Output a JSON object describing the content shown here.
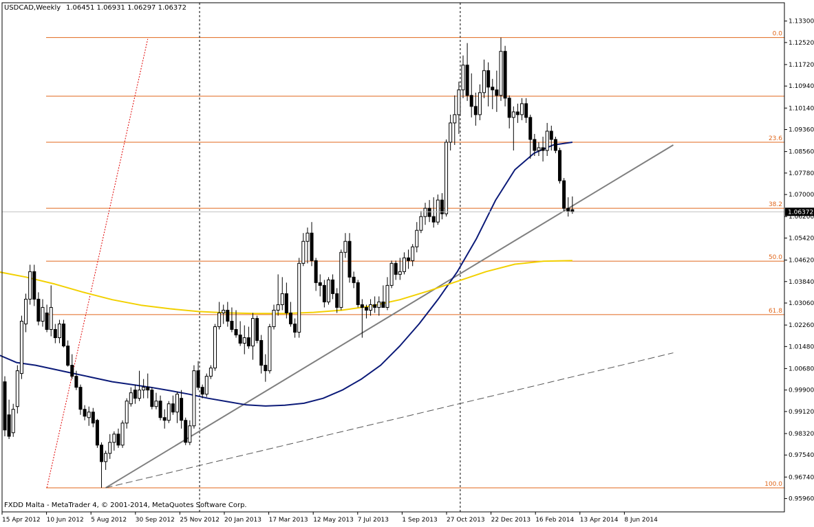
{
  "header": {
    "symbol": "USDCAD,Weekly",
    "ohlc": "1.06451 1.06931 1.06297 1.06372"
  },
  "footer": {
    "copyright": "FXDD Malta - MetaTrader 4, © 2001-2014, MetaQuotes Software Corp."
  },
  "colors": {
    "background": "#ffffff",
    "bull_candle": "#ffffff",
    "bear_candle": "#000000",
    "candle_outline": "#000000",
    "fib_lines": "#e0661a",
    "ma_fast": "#0b1a78",
    "ma_slow": "#f2d000",
    "trendline": "#7f7f7f",
    "price_line": "#c0c0c0"
  },
  "chart_data": {
    "type": "candlestick",
    "title": "USDCAD,Weekly",
    "current_price": "1.06372",
    "price_axis": {
      "ylim": [
        0.9555,
        1.1364
      ],
      "ticks": [
        "1.13300",
        "1.12520",
        "1.11720",
        "1.10940",
        "1.10140",
        "1.09360",
        "1.08560",
        "1.07780",
        "1.07000",
        "1.06200",
        "1.05420",
        "1.04620",
        "1.03840",
        "1.03060",
        "1.02260",
        "1.01480",
        "1.00680",
        "0.99900",
        "0.99120",
        "0.98320",
        "0.97540",
        "0.96740",
        "0.95960"
      ]
    },
    "time_axis": {
      "ticks": [
        "15 Apr 2012",
        "10 Jun 2012",
        "5 Aug 2012",
        "30 Sep 2012",
        "25 Nov 2012",
        "20 Jan 2013",
        "17 Mar 2013",
        "12 May 2013",
        "7 Jul 2013",
        "1 Sep 2013",
        "27 Oct 2013",
        "22 Dec 2013",
        "16 Feb 2014",
        "13 Apr 2014",
        "8 Jun 2014"
      ],
      "first_bar": "15 Apr 2012",
      "bar_interval": "weekly"
    },
    "candles": [
      {
        "o": 1.002,
        "h": 1.004,
        "l": 0.9822,
        "c": 0.9845
      },
      {
        "o": 0.99,
        "h": 0.9955,
        "l": 0.9812,
        "c": 0.9822
      },
      {
        "o": 0.9835,
        "h": 0.994,
        "l": 0.982,
        "c": 0.992
      },
      {
        "o": 0.993,
        "h": 1.008,
        "l": 0.9905,
        "c": 1.006
      },
      {
        "o": 1.005,
        "h": 1.026,
        "l": 1.003,
        "c": 1.024
      },
      {
        "o": 1.023,
        "h": 1.034,
        "l": 1.02,
        "c": 1.032
      },
      {
        "o": 1.032,
        "h": 1.0445,
        "l": 1.03,
        "c": 1.042
      },
      {
        "o": 1.042,
        "h": 1.0445,
        "l": 1.0295,
        "c": 1.032
      },
      {
        "o": 1.032,
        "h": 1.0345,
        "l": 1.0225,
        "c": 1.024
      },
      {
        "o": 1.024,
        "h": 1.032,
        "l": 1.022,
        "c": 1.029
      },
      {
        "o": 1.027,
        "h": 1.03,
        "l": 1.02,
        "c": 1.021
      },
      {
        "o": 1.021,
        "h": 1.037,
        "l": 1.0185,
        "c": 1.029
      },
      {
        "o": 1.021,
        "h": 1.023,
        "l": 1.016,
        "c": 1.018
      },
      {
        "o": 1.018,
        "h": 1.0245,
        "l": 1.016,
        "c": 1.023
      },
      {
        "o": 1.023,
        "h": 1.0245,
        "l": 1.0145,
        "c": 1.015
      },
      {
        "o": 1.015,
        "h": 1.017,
        "l": 1.0075,
        "c": 1.008
      },
      {
        "o": 1.008,
        "h": 1.012,
        "l": 1.003,
        "c": 1.004
      },
      {
        "o": 1.004,
        "h": 1.006,
        "l": 0.999,
        "c": 1.0
      },
      {
        "o": 1.0,
        "h": 1.001,
        "l": 0.99,
        "c": 0.992
      },
      {
        "o": 0.992,
        "h": 0.9935,
        "l": 0.988,
        "c": 0.9895
      },
      {
        "o": 0.989,
        "h": 0.993,
        "l": 0.986,
        "c": 0.991
      },
      {
        "o": 0.991,
        "h": 0.9925,
        "l": 0.9855,
        "c": 0.987
      },
      {
        "o": 0.988,
        "h": 0.9885,
        "l": 0.978,
        "c": 0.979
      },
      {
        "o": 0.979,
        "h": 0.98,
        "l": 0.9635,
        "c": 0.973
      },
      {
        "o": 0.973,
        "h": 0.977,
        "l": 0.97,
        "c": 0.976
      },
      {
        "o": 0.976,
        "h": 0.983,
        "l": 0.974,
        "c": 0.98
      },
      {
        "o": 0.98,
        "h": 0.984,
        "l": 0.977,
        "c": 0.983
      },
      {
        "o": 0.983,
        "h": 0.985,
        "l": 0.978,
        "c": 0.979
      },
      {
        "o": 0.979,
        "h": 0.988,
        "l": 0.978,
        "c": 0.987
      },
      {
        "o": 0.987,
        "h": 0.996,
        "l": 0.985,
        "c": 0.995
      },
      {
        "o": 0.994,
        "h": 1.0,
        "l": 0.993,
        "c": 0.998
      },
      {
        "o": 0.999,
        "h": 1.001,
        "l": 0.994,
        "c": 0.996
      },
      {
        "o": 0.996,
        "h": 1.006,
        "l": 0.995,
        "c": 0.999
      },
      {
        "o": 0.999,
        "h": 1.003,
        "l": 0.996,
        "c": 1.0
      },
      {
        "o": 1.0,
        "h": 1.005,
        "l": 0.996,
        "c": 0.999
      },
      {
        "o": 0.999,
        "h": 1.0,
        "l": 0.992,
        "c": 0.993
      },
      {
        "o": 0.993,
        "h": 0.998,
        "l": 0.992,
        "c": 0.995
      },
      {
        "o": 0.995,
        "h": 0.997,
        "l": 0.988,
        "c": 0.989
      },
      {
        "o": 0.989,
        "h": 0.992,
        "l": 0.985,
        "c": 0.988
      },
      {
        "o": 0.988,
        "h": 0.995,
        "l": 0.987,
        "c": 0.994
      },
      {
        "o": 0.994,
        "h": 0.997,
        "l": 0.99,
        "c": 0.991
      },
      {
        "o": 0.991,
        "h": 0.9985,
        "l": 0.987,
        "c": 0.9975
      },
      {
        "o": 0.996,
        "h": 0.999,
        "l": 0.985,
        "c": 0.988
      },
      {
        "o": 0.988,
        "h": 0.989,
        "l": 0.979,
        "c": 0.98
      },
      {
        "o": 0.98,
        "h": 0.988,
        "l": 0.979,
        "c": 0.986
      },
      {
        "o": 0.986,
        "h": 1.008,
        "l": 0.985,
        "c": 1.006
      },
      {
        "o": 1.006,
        "h": 1.0095,
        "l": 0.999,
        "c": 1.0
      },
      {
        "o": 1.0,
        "h": 1.001,
        "l": 0.996,
        "c": 0.9975
      },
      {
        "o": 0.9975,
        "h": 1.005,
        "l": 0.9965,
        "c": 1.004
      },
      {
        "o": 1.004,
        "h": 1.008,
        "l": 1.003,
        "c": 1.007
      },
      {
        "o": 1.007,
        "h": 1.023,
        "l": 1.006,
        "c": 1.022
      },
      {
        "o": 1.022,
        "h": 1.031,
        "l": 1.021,
        "c": 1.027
      },
      {
        "o": 1.027,
        "h": 1.03,
        "l": 1.023,
        "c": 1.028
      },
      {
        "o": 1.028,
        "h": 1.031,
        "l": 1.022,
        "c": 1.024
      },
      {
        "o": 1.024,
        "h": 1.029,
        "l": 1.02,
        "c": 1.021
      },
      {
        "o": 1.021,
        "h": 1.028,
        "l": 1.018,
        "c": 1.019
      },
      {
        "o": 1.019,
        "h": 1.024,
        "l": 1.015,
        "c": 1.016
      },
      {
        "o": 1.016,
        "h": 1.0225,
        "l": 1.012,
        "c": 1.018
      },
      {
        "o": 1.018,
        "h": 1.022,
        "l": 1.014,
        "c": 1.015
      },
      {
        "o": 1.015,
        "h": 1.027,
        "l": 1.01,
        "c": 1.025
      },
      {
        "o": 1.025,
        "h": 1.026,
        "l": 1.016,
        "c": 1.017
      },
      {
        "o": 1.017,
        "h": 1.019,
        "l": 1.005,
        "c": 1.008
      },
      {
        "o": 1.008,
        "h": 1.012,
        "l": 1.002,
        "c": 1.006
      },
      {
        "o": 1.006,
        "h": 1.023,
        "l": 1.005,
        "c": 1.022
      },
      {
        "o": 1.022,
        "h": 1.03,
        "l": 1.021,
        "c": 1.028
      },
      {
        "o": 1.028,
        "h": 1.041,
        "l": 1.026,
        "c": 1.03
      },
      {
        "o": 1.03,
        "h": 1.04,
        "l": 1.028,
        "c": 1.034
      },
      {
        "o": 1.034,
        "h": 1.038,
        "l": 1.025,
        "c": 1.027
      },
      {
        "o": 1.027,
        "h": 1.031,
        "l": 1.022,
        "c": 1.023
      },
      {
        "o": 1.023,
        "h": 1.025,
        "l": 1.018,
        "c": 1.02
      },
      {
        "o": 1.02,
        "h": 1.047,
        "l": 1.018,
        "c": 1.045
      },
      {
        "o": 1.045,
        "h": 1.056,
        "l": 1.044,
        "c": 1.053
      },
      {
        "o": 1.053,
        "h": 1.058,
        "l": 1.045,
        "c": 1.056
      },
      {
        "o": 1.056,
        "h": 1.06,
        "l": 1.044,
        "c": 1.046
      },
      {
        "o": 1.046,
        "h": 1.047,
        "l": 1.035,
        "c": 1.038
      },
      {
        "o": 1.038,
        "h": 1.041,
        "l": 1.033,
        "c": 1.037
      },
      {
        "o": 1.037,
        "h": 1.039,
        "l": 1.029,
        "c": 1.031
      },
      {
        "o": 1.031,
        "h": 1.04,
        "l": 1.03,
        "c": 1.039
      },
      {
        "o": 1.039,
        "h": 1.041,
        "l": 1.032,
        "c": 1.034
      },
      {
        "o": 1.034,
        "h": 1.036,
        "l": 1.027,
        "c": 1.029
      },
      {
        "o": 1.029,
        "h": 1.05,
        "l": 1.028,
        "c": 1.049
      },
      {
        "o": 1.049,
        "h": 1.056,
        "l": 1.047,
        "c": 1.053
      },
      {
        "o": 1.053,
        "h": 1.056,
        "l": 1.038,
        "c": 1.04
      },
      {
        "o": 1.04,
        "h": 1.042,
        "l": 1.036,
        "c": 1.038
      },
      {
        "o": 1.038,
        "h": 1.039,
        "l": 1.029,
        "c": 1.03
      },
      {
        "o": 1.03,
        "h": 1.032,
        "l": 1.018,
        "c": 1.029
      },
      {
        "o": 1.029,
        "h": 1.03,
        "l": 1.025,
        "c": 1.028
      },
      {
        "o": 1.028,
        "h": 1.032,
        "l": 1.026,
        "c": 1.03
      },
      {
        "o": 1.03,
        "h": 1.033,
        "l": 1.027,
        "c": 1.029
      },
      {
        "o": 1.029,
        "h": 1.033,
        "l": 1.026,
        "c": 1.031
      },
      {
        "o": 1.031,
        "h": 1.037,
        "l": 1.029,
        "c": 1.029
      },
      {
        "o": 1.029,
        "h": 1.04,
        "l": 1.028,
        "c": 1.037
      },
      {
        "o": 1.037,
        "h": 1.046,
        "l": 1.036,
        "c": 1.045
      },
      {
        "o": 1.045,
        "h": 1.046,
        "l": 1.039,
        "c": 1.041
      },
      {
        "o": 1.041,
        "h": 1.047,
        "l": 1.039,
        "c": 1.042
      },
      {
        "o": 1.042,
        "h": 1.049,
        "l": 1.041,
        "c": 1.047
      },
      {
        "o": 1.047,
        "h": 1.05,
        "l": 1.043,
        "c": 1.046
      },
      {
        "o": 1.046,
        "h": 1.052,
        "l": 1.044,
        "c": 1.051
      },
      {
        "o": 1.051,
        "h": 1.06,
        "l": 1.049,
        "c": 1.057
      },
      {
        "o": 1.057,
        "h": 1.064,
        "l": 1.056,
        "c": 1.062
      },
      {
        "o": 1.062,
        "h": 1.067,
        "l": 1.059,
        "c": 1.065
      },
      {
        "o": 1.065,
        "h": 1.068,
        "l": 1.06,
        "c": 1.062
      },
      {
        "o": 1.062,
        "h": 1.069,
        "l": 1.058,
        "c": 1.06
      },
      {
        "o": 1.06,
        "h": 1.07,
        "l": 1.059,
        "c": 1.068
      },
      {
        "o": 1.068,
        "h": 1.0705,
        "l": 1.061,
        "c": 1.063
      },
      {
        "o": 1.063,
        "h": 1.09,
        "l": 1.062,
        "c": 1.089
      },
      {
        "o": 1.089,
        "h": 1.099,
        "l": 1.086,
        "c": 1.096
      },
      {
        "o": 1.096,
        "h": 1.106,
        "l": 1.088,
        "c": 1.099
      },
      {
        "o": 1.099,
        "h": 1.111,
        "l": 1.092,
        "c": 1.108
      },
      {
        "o": 1.108,
        "h": 1.1205,
        "l": 1.105,
        "c": 1.117
      },
      {
        "o": 1.117,
        "h": 1.125,
        "l": 1.104,
        "c": 1.106
      },
      {
        "o": 1.106,
        "h": 1.114,
        "l": 1.098,
        "c": 1.102
      },
      {
        "o": 1.102,
        "h": 1.107,
        "l": 1.095,
        "c": 1.099
      },
      {
        "o": 1.099,
        "h": 1.11,
        "l": 1.097,
        "c": 1.107
      },
      {
        "o": 1.107,
        "h": 1.119,
        "l": 1.105,
        "c": 1.115
      },
      {
        "o": 1.115,
        "h": 1.118,
        "l": 1.102,
        "c": 1.109
      },
      {
        "o": 1.109,
        "h": 1.112,
        "l": 1.101,
        "c": 1.108
      },
      {
        "o": 1.108,
        "h": 1.115,
        "l": 1.1,
        "c": 1.106
      },
      {
        "o": 1.106,
        "h": 1.127,
        "l": 1.104,
        "c": 1.122
      },
      {
        "o": 1.122,
        "h": 1.124,
        "l": 1.102,
        "c": 1.105
      },
      {
        "o": 1.105,
        "h": 1.106,
        "l": 1.094,
        "c": 1.098
      },
      {
        "o": 1.098,
        "h": 1.102,
        "l": 1.086,
        "c": 1.1
      },
      {
        "o": 1.1,
        "h": 1.103,
        "l": 1.096,
        "c": 1.099
      },
      {
        "o": 1.099,
        "h": 1.105,
        "l": 1.097,
        "c": 1.103
      },
      {
        "o": 1.103,
        "h": 1.105,
        "l": 1.096,
        "c": 1.098
      },
      {
        "o": 1.098,
        "h": 1.099,
        "l": 1.083,
        "c": 1.09
      },
      {
        "o": 1.09,
        "h": 1.092,
        "l": 1.084,
        "c": 1.086
      },
      {
        "o": 1.086,
        "h": 1.089,
        "l": 1.084,
        "c": 1.087
      },
      {
        "o": 1.087,
        "h": 1.091,
        "l": 1.082,
        "c": 1.086
      },
      {
        "o": 1.086,
        "h": 1.096,
        "l": 1.084,
        "c": 1.093
      },
      {
        "o": 1.093,
        "h": 1.095,
        "l": 1.086,
        "c": 1.09
      },
      {
        "o": 1.09,
        "h": 1.091,
        "l": 1.085,
        "c": 1.086
      },
      {
        "o": 1.086,
        "h": 1.087,
        "l": 1.074,
        "c": 1.075
      },
      {
        "o": 1.075,
        "h": 1.076,
        "l": 1.064,
        "c": 1.065
      },
      {
        "o": 1.065,
        "h": 1.069,
        "l": 1.062,
        "c": 1.064
      },
      {
        "o": 1.0645,
        "h": 1.0693,
        "l": 1.063,
        "c": 1.0637
      }
    ],
    "moving_averages": [
      {
        "color": "#0b1a78",
        "values": [
          1.012,
          1.009,
          1.008,
          1.0065,
          1.005,
          1.0035,
          1.002,
          1.001,
          1.0,
          0.9988,
          0.9975,
          0.996,
          0.9948,
          0.9936,
          0.9932,
          0.9935,
          0.9942,
          0.996,
          0.999,
          1.003,
          1.008,
          1.015,
          1.023,
          1.032,
          1.042,
          1.054,
          1.068,
          1.079,
          1.085,
          1.088,
          1.089
        ]
      },
      {
        "color": "#f2d000",
        "values": [
          1.042,
          1.04,
          1.0375,
          1.0345,
          1.0318,
          1.0298,
          1.0285,
          1.0275,
          1.027,
          1.0268,
          1.0268,
          1.0272,
          1.028,
          1.0295,
          1.0318,
          1.035,
          1.0385,
          1.042,
          1.0447,
          1.0458,
          1.046
        ]
      }
    ],
    "fibonacci": [
      {
        "label": "0.0",
        "price": 1.127
      },
      {
        "label": "",
        "price": 1.1057
      },
      {
        "label": "23.6",
        "price": 1.089
      },
      {
        "label": "38.2",
        "price": 1.065
      },
      {
        "label": "50.0",
        "price": 1.0458
      },
      {
        "label": "61.8",
        "price": 1.0264
      },
      {
        "label": "100.0",
        "price": 0.9635
      }
    ],
    "trendlines": [
      {
        "style": "solid",
        "color": "#7f7f7f",
        "from_bar": 24,
        "from_price": 0.9635,
        "to_bar": 159,
        "to_price": 1.088
      },
      {
        "style": "dashed",
        "color": "#555555",
        "from_bar": 24,
        "from_price": 0.9635,
        "to_bar": 159,
        "to_price": 1.0125
      },
      {
        "style": "dotted",
        "color": "#e00000",
        "from_bar": 10,
        "from_price": 0.9635,
        "to_bar": 34,
        "to_price": 1.1265
      }
    ],
    "vertical_separators_bars": [
      46,
      108
    ],
    "grid": false
  }
}
